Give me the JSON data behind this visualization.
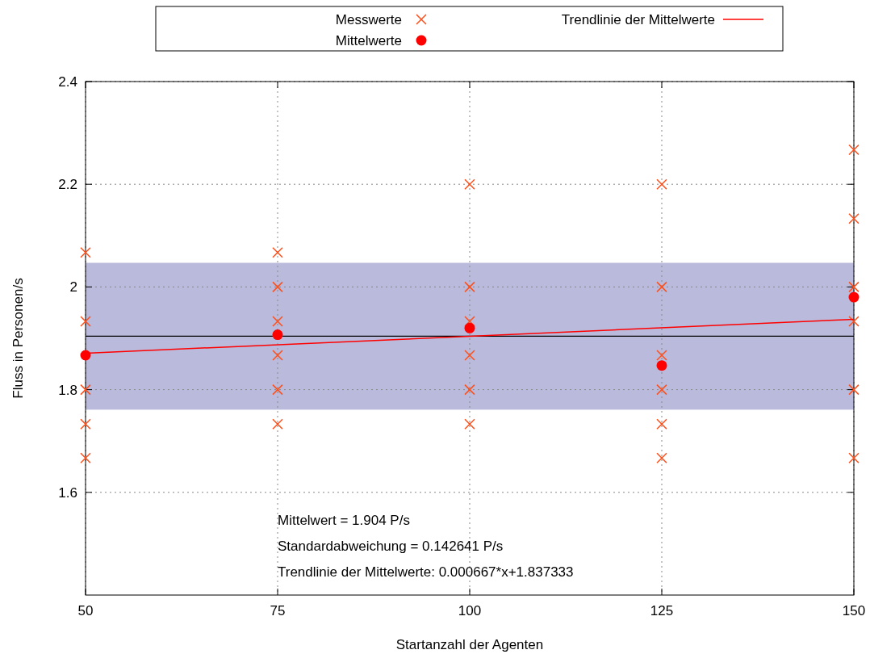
{
  "chart_data": {
    "type": "scatter",
    "xlabel": "Startanzahl der Agenten",
    "ylabel": "Fluss in Personen/s",
    "xlim": [
      50,
      150
    ],
    "xticks": [
      50,
      75,
      100,
      125,
      150
    ],
    "ylim": [
      1.4,
      2.4
    ],
    "yticks": [
      1.6,
      1.8,
      2,
      2.2,
      2.4
    ],
    "grid": true,
    "legend": "top",
    "series": [
      {
        "name": "Messwerte",
        "marker": "cross",
        "color": "#ff4f1a",
        "x": [
          50,
          50,
          50,
          50,
          50,
          75,
          75,
          75,
          75,
          75,
          75,
          100,
          100,
          100,
          100,
          100,
          100,
          125,
          125,
          125,
          125,
          125,
          125,
          150,
          150,
          150,
          150,
          150,
          150
        ],
        "values": [
          2.067,
          1.933,
          1.8,
          1.733,
          1.667,
          2.067,
          2.0,
          1.933,
          1.867,
          1.8,
          1.733,
          2.2,
          2.0,
          1.933,
          1.867,
          1.8,
          1.733,
          2.2,
          2.0,
          1.867,
          1.8,
          1.733,
          1.667,
          2.267,
          2.133,
          2.0,
          1.933,
          1.8,
          1.667
        ]
      },
      {
        "name": "Mittelwerte",
        "marker": "circle",
        "color": "#ff0000",
        "x": [
          50,
          75,
          100,
          125,
          150
        ],
        "values": [
          1.867,
          1.907,
          1.92,
          1.847,
          1.98
        ]
      },
      {
        "name": "Trendlinie der Mittelwerte",
        "type": "line",
        "marker": "none",
        "line_style": "solid",
        "color": "#ff0000",
        "x": [
          50,
          150
        ],
        "values": [
          1.871,
          1.937
        ]
      }
    ],
    "ref_lines": [
      {
        "axis": "y",
        "value": 1.904,
        "color": "#000000"
      }
    ],
    "bands": [
      {
        "axis": "y",
        "from": 1.761,
        "to": 2.047,
        "color": "#babadc"
      }
    ],
    "annotations": [
      "Mittelwert = 1.904 P/s",
      "Standardabweichung = 0.142641 P/s",
      "Trendlinie der Mittelwerte: 0.000667*x+1.837333"
    ]
  }
}
